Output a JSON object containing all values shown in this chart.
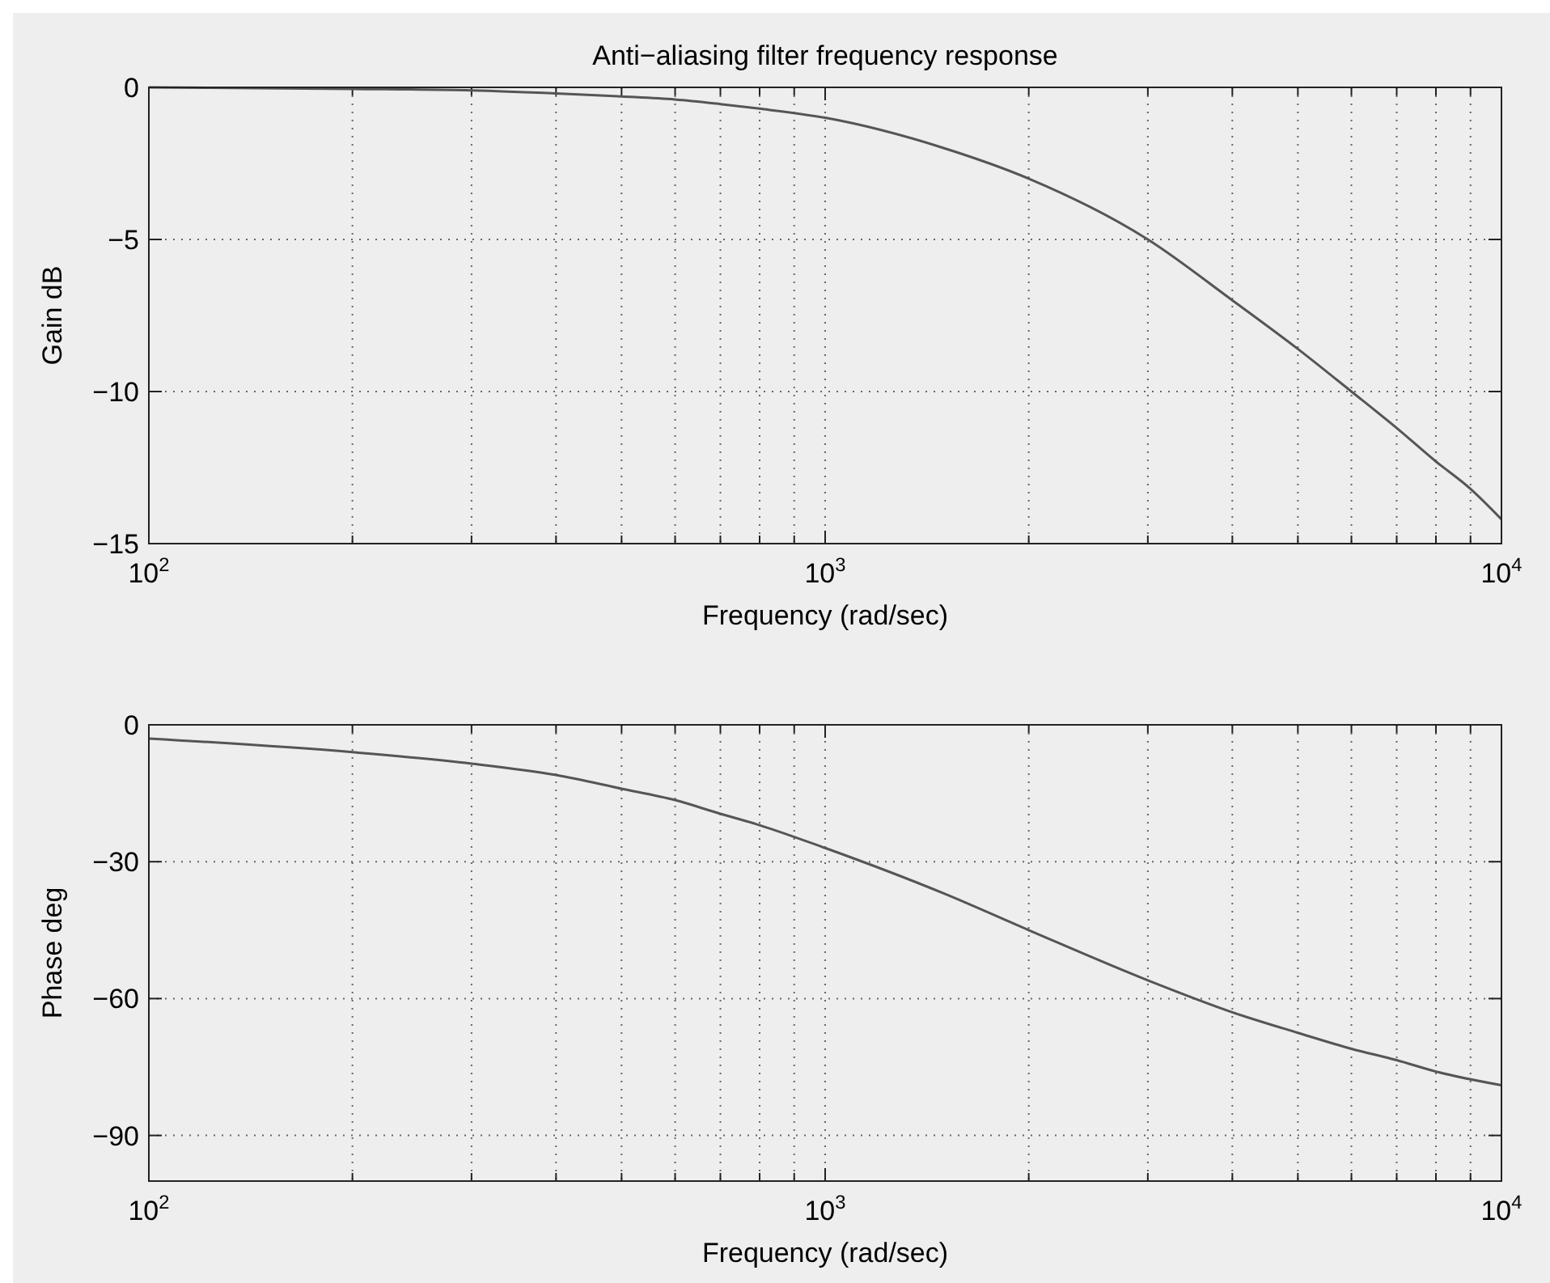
{
  "chart_data": [
    {
      "type": "line",
      "title": "Anti−aliasing filter frequency response",
      "xlabel": "Frequency (rad/sec)",
      "ylabel": "Gain dB",
      "log": "x",
      "grid": true,
      "marker": "none",
      "line_style": "solid",
      "xlim": [
        100,
        10000
      ],
      "ylim": [
        -15,
        0
      ],
      "xticks": [
        {
          "value": 100,
          "label": "10$^{2}$"
        },
        {
          "value": 200,
          "label": null
        },
        {
          "value": 300,
          "label": null
        },
        {
          "value": 400,
          "label": null
        },
        {
          "value": 500,
          "label": null
        },
        {
          "value": 600,
          "label": null
        },
        {
          "value": 700,
          "label": null
        },
        {
          "value": 800,
          "label": null
        },
        {
          "value": 900,
          "label": null
        },
        {
          "value": 1000,
          "label": "10$^{3}$"
        },
        {
          "value": 2000,
          "label": null
        },
        {
          "value": 3000,
          "label": null
        },
        {
          "value": 4000,
          "label": null
        },
        {
          "value": 5000,
          "label": null
        },
        {
          "value": 6000,
          "label": null
        },
        {
          "value": 7000,
          "label": null
        },
        {
          "value": 8000,
          "label": null
        },
        {
          "value": 9000,
          "label": null
        },
        {
          "value": 10000,
          "label": "10$^{4}$"
        }
      ],
      "yticks": [
        {
          "value": -15,
          "label": "−15"
        },
        {
          "value": -10,
          "label": "−10"
        },
        {
          "value": -5,
          "label": "−5"
        },
        0
      ],
      "x": [
        100,
        200,
        300,
        400,
        500,
        600,
        700,
        800,
        1000,
        1500,
        2000,
        3000,
        4000,
        5000,
        6000,
        7000,
        8000,
        9000,
        10000
      ],
      "series": [
        {
          "color": "#555555",
          "values": [
            0,
            -0.05,
            -0.1,
            -0.2,
            -0.3,
            -0.4,
            -0.55,
            -0.7,
            -1.0,
            -2.0,
            -3.0,
            -5.0,
            -7.0,
            -8.6,
            -10.0,
            -11.2,
            -12.3,
            -13.2,
            -14.2
          ]
        }
      ]
    },
    {
      "type": "line",
      "xlabel": "Frequency (rad/sec)",
      "ylabel": "Phase deg",
      "log": "x",
      "grid": true,
      "marker": "none",
      "line_style": "solid",
      "xlim": [
        100,
        10000
      ],
      "ylim": [
        -100,
        0
      ],
      "xticks": [
        {
          "value": 100,
          "label": "10$^{2}$"
        },
        {
          "value": 200,
          "label": null
        },
        {
          "value": 300,
          "label": null
        },
        {
          "value": 400,
          "label": null
        },
        {
          "value": 500,
          "label": null
        },
        {
          "value": 600,
          "label": null
        },
        {
          "value": 700,
          "label": null
        },
        {
          "value": 800,
          "label": null
        },
        {
          "value": 900,
          "label": null
        },
        {
          "value": 1000,
          "label": "10$^{3}$"
        },
        {
          "value": 2000,
          "label": null
        },
        {
          "value": 3000,
          "label": null
        },
        {
          "value": 4000,
          "label": null
        },
        {
          "value": 5000,
          "label": null
        },
        {
          "value": 6000,
          "label": null
        },
        {
          "value": 7000,
          "label": null
        },
        {
          "value": 8000,
          "label": null
        },
        {
          "value": 9000,
          "label": null
        },
        {
          "value": 10000,
          "label": "10$^{4}$"
        }
      ],
      "yticks": [
        {
          "value": -90,
          "label": "−90"
        },
        {
          "value": -60,
          "label": "−60"
        },
        {
          "value": -30,
          "label": "−30"
        },
        0
      ],
      "x": [
        100,
        200,
        300,
        400,
        500,
        600,
        700,
        800,
        1000,
        1500,
        2000,
        3000,
        4000,
        5000,
        6000,
        7000,
        8000,
        10000
      ],
      "series": [
        {
          "color": "#555555",
          "values": [
            -3,
            -6,
            -8.5,
            -11,
            -14,
            -16.5,
            -19.5,
            -22,
            -27,
            -37,
            -45,
            -56,
            -63,
            -67.5,
            -71,
            -73.5,
            -76,
            -79
          ]
        }
      ]
    }
  ]
}
